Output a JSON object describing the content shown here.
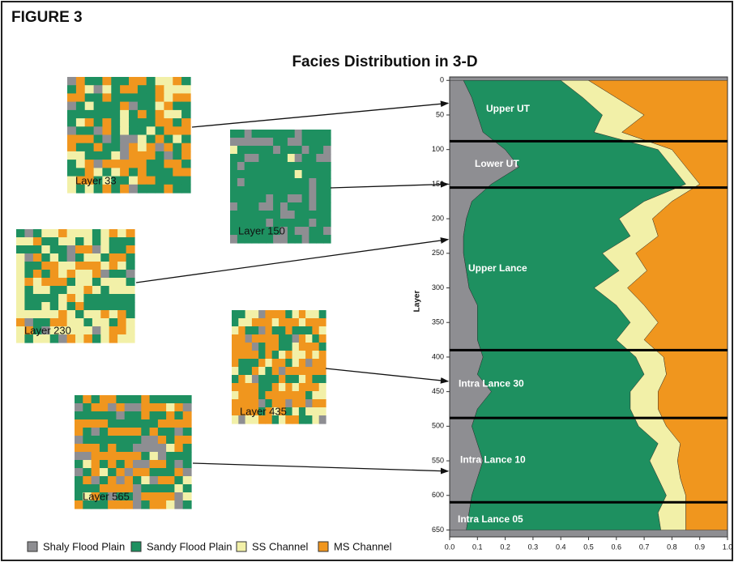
{
  "chart_data": {
    "type": "area",
    "figure_label": "FIGURE 3",
    "title": "Facies Distribution in 3-D",
    "y_label": "Layer",
    "x": [
      0,
      25,
      50,
      75,
      100,
      125,
      150,
      175,
      200,
      225,
      250,
      275,
      300,
      325,
      350,
      375,
      400,
      425,
      450,
      475,
      500,
      525,
      550,
      575,
      600,
      625,
      650
    ],
    "series": [
      {
        "name": "Shaly Flood Plain",
        "color": "#8e8e92",
        "values": [
          0.05,
          0.08,
          0.1,
          0.12,
          0.2,
          0.25,
          0.15,
          0.08,
          0.06,
          0.05,
          0.05,
          0.06,
          0.07,
          0.1,
          0.1,
          0.1,
          0.12,
          0.1,
          0.15,
          0.1,
          0.08,
          0.1,
          0.12,
          0.1,
          0.08,
          0.07,
          0.06
        ]
      },
      {
        "name": "Sandy Flood Plain",
        "color": "#1e9060",
        "values": [
          0.35,
          0.4,
          0.45,
          0.4,
          0.55,
          0.55,
          0.7,
          0.62,
          0.55,
          0.6,
          0.5,
          0.55,
          0.45,
          0.5,
          0.55,
          0.5,
          0.55,
          0.6,
          0.5,
          0.55,
          0.6,
          0.65,
          0.6,
          0.65,
          0.7,
          0.68,
          0.7
        ]
      },
      {
        "name": "SS Channel",
        "color": "#f2f0a8",
        "values": [
          0.1,
          0.12,
          0.15,
          0.1,
          0.05,
          0.05,
          0.05,
          0.1,
          0.12,
          0.1,
          0.12,
          0.1,
          0.12,
          0.1,
          0.1,
          0.1,
          0.1,
          0.08,
          0.1,
          0.1,
          0.1,
          0.08,
          0.1,
          0.08,
          0.07,
          0.1,
          0.09
        ]
      },
      {
        "name": "MS Channel",
        "color": "#f0961e",
        "values": [
          0.5,
          0.4,
          0.3,
          0.38,
          0.2,
          0.15,
          0.1,
          0.2,
          0.27,
          0.25,
          0.33,
          0.29,
          0.36,
          0.3,
          0.25,
          0.3,
          0.23,
          0.22,
          0.25,
          0.25,
          0.22,
          0.17,
          0.18,
          0.17,
          0.15,
          0.15,
          0.15
        ]
      }
    ],
    "ylim": [
      -5,
      660
    ],
    "yticks": [
      0,
      50,
      100,
      150,
      200,
      250,
      300,
      350,
      400,
      450,
      500,
      550,
      600,
      650
    ],
    "xlim": [
      0,
      1
    ],
    "xticks": [
      {
        "value": 0,
        "label": "0.0"
      },
      0.1,
      0.2,
      0.3,
      0.4,
      0.5,
      0.6,
      0.7,
      0.8,
      0.9,
      {
        "value": 1,
        "label": "1.0"
      }
    ],
    "boundaries": [
      88,
      155,
      390,
      488,
      610
    ],
    "zones": [
      "Upper UT",
      "Lower UT",
      "Upper Lance",
      "Intra Lance 30",
      "Intra Lance 10",
      "Intra Lance 05"
    ],
    "maps": [
      {
        "label": "Layer 33",
        "layer": 33
      },
      {
        "label": "Layer 150",
        "layer": 150
      },
      {
        "label": "Layer 230",
        "layer": 230
      },
      {
        "label": "Layer 435",
        "layer": 435
      },
      {
        "label": "Layer 565",
        "layer": 565
      }
    ]
  }
}
